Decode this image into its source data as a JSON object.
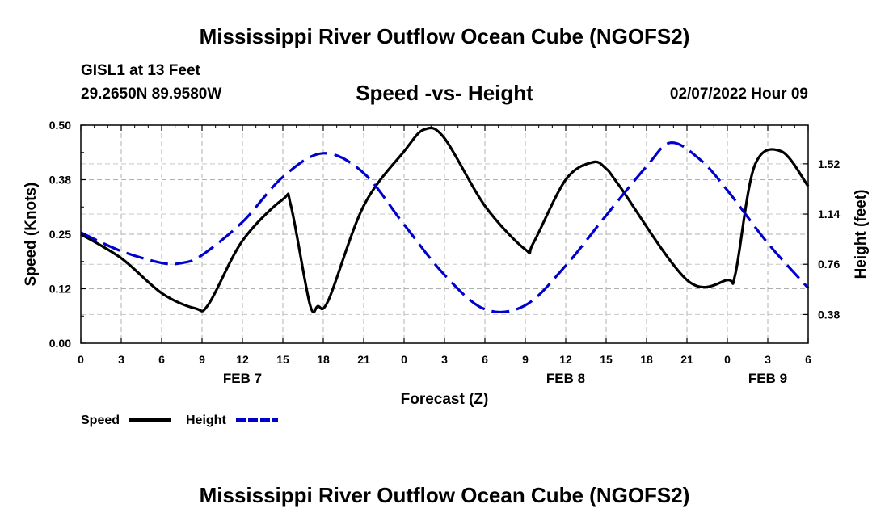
{
  "header": {
    "title": "Mississippi River Outflow Ocean Cube (NGOFS2)",
    "station": "GISL1 at 13 Feet",
    "coords": "29.2650N  89.9580W",
    "subtitle": "Speed -vs- Height",
    "datetime": "02/07/2022 Hour 09"
  },
  "footer": {
    "title": "Mississippi River Outflow Ocean Cube (NGOFS2)"
  },
  "chart_data": {
    "type": "line",
    "title": "Speed -vs- Height",
    "xlabel": "Forecast (Z)",
    "ylabel": "Speed (Knots)",
    "y2label": "Height (feet)",
    "x_ticks": [
      0,
      3,
      6,
      9,
      12,
      15,
      18,
      21,
      24,
      27,
      30,
      33,
      36,
      39,
      42,
      45,
      48,
      51,
      54
    ],
    "x_tick_labels": [
      "0",
      "3",
      "6",
      "9",
      "12",
      "15",
      "18",
      "21",
      "0",
      "3",
      "6",
      "9",
      "12",
      "15",
      "18",
      "21",
      "0",
      "3",
      "6"
    ],
    "day_labels": [
      {
        "x": 12,
        "label": "FEB 7"
      },
      {
        "x": 36,
        "label": "FEB 8"
      },
      {
        "x": 51,
        "label": "FEB 9"
      }
    ],
    "xlim": [
      0,
      54
    ],
    "ylim": [
      0,
      0.5
    ],
    "y_ticks": [
      0.0,
      0.125,
      0.25,
      0.375,
      0.5
    ],
    "y_tick_labels": [
      "0.00",
      "0.12",
      "0.25",
      "0.38",
      "0.50"
    ],
    "y2lim": [
      0.1625,
      1.8125
    ],
    "y2_ticks": [
      0.38,
      0.76,
      1.14,
      1.52
    ],
    "y2_tick_labels": [
      "0.38",
      "0.76",
      "1.14",
      "1.52"
    ],
    "grid": true,
    "legend_position": "bottom-left",
    "series": [
      {
        "name": "Speed",
        "axis": "left",
        "color": "#000000",
        "dash": "solid",
        "x": [
          0,
          3,
          6,
          8.5,
          9.5,
          12,
          15,
          15.6,
          17,
          17.6,
          18.4,
          21,
          24,
          25.5,
          27,
          30,
          33,
          33.6,
          36,
          38,
          39,
          40,
          45,
          48,
          48.6,
          50,
          52,
          54
        ],
        "values": [
          0.25,
          0.195,
          0.115,
          0.08,
          0.09,
          0.235,
          0.33,
          0.315,
          0.09,
          0.085,
          0.1,
          0.315,
          0.44,
          0.49,
          0.47,
          0.315,
          0.215,
          0.23,
          0.375,
          0.415,
          0.4,
          0.36,
          0.145,
          0.145,
          0.16,
          0.405,
          0.44,
          0.36
        ]
      },
      {
        "name": "Height",
        "axis": "right",
        "color": "#0000cc",
        "dash": "dashed",
        "x": [
          0,
          3,
          6,
          7.5,
          9,
          12,
          15,
          18,
          21,
          24,
          27,
          30,
          33,
          36,
          39,
          42,
          43.8,
          46,
          48,
          51,
          54
        ],
        "values": [
          1.0,
          0.86,
          0.77,
          0.77,
          0.83,
          1.08,
          1.42,
          1.6,
          1.45,
          1.06,
          0.68,
          0.42,
          0.45,
          0.75,
          1.13,
          1.5,
          1.68,
          1.55,
          1.32,
          0.92,
          0.58
        ]
      }
    ]
  }
}
